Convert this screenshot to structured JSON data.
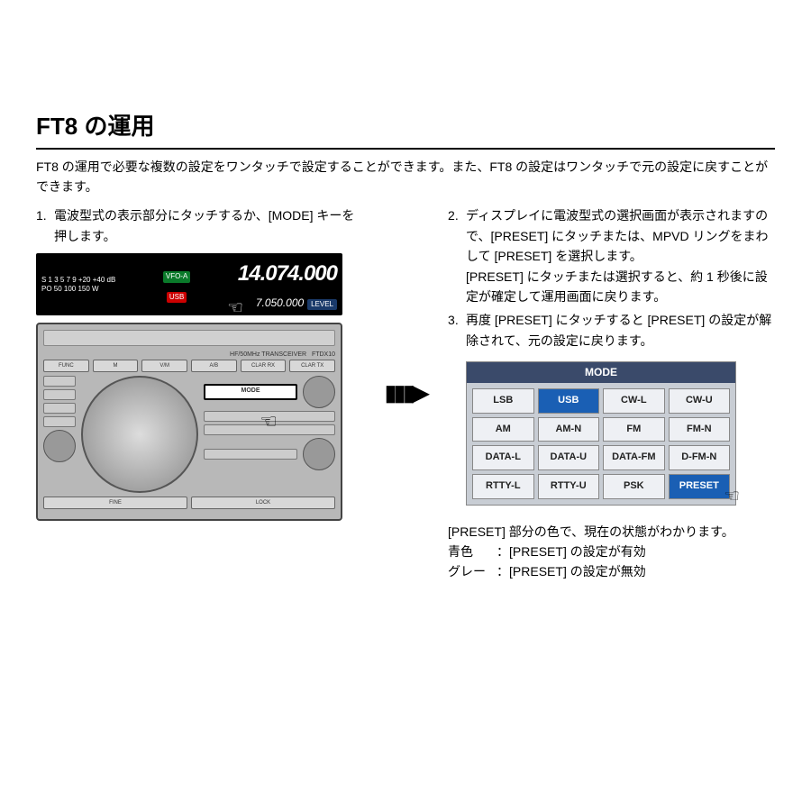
{
  "title": "FT8 の運用",
  "intro": "FT8 の運用で必要な複数の設定をワンタッチで設定することができます。また、FT8 の設定はワンタッチで元の設定に戻すことができます。",
  "left": {
    "step1_num": "1.",
    "step1_text": "電波型式の表示部分にタッチするか、[MODE] キーを押します。",
    "display": {
      "s_meter": "S 1 3 5 7 9 +20 +40 dB",
      "po_meter": "PO 50 100 150 W",
      "vfo": "VFO-A",
      "mode_badge": "USB",
      "freq_main": "14.074.000",
      "freq_sub": "7.050.000",
      "level": "LEVEL"
    },
    "front": {
      "brand": "HF/50MHz TRANSCEIVER",
      "model": "FTDX10",
      "btns_row": [
        "M",
        "V/M",
        "A/B",
        "CLAR RX",
        "CLAR TX"
      ],
      "mode_label": "MODE"
    }
  },
  "right": {
    "step2_num": "2.",
    "step2_text": "ディスプレイに電波型式の選択画面が表示されますので、[PRESET] にタッチまたは、MPVD リングをまわして [PRESET] を選択します。\n[PRESET] にタッチまたは選択すると、約 1 秒後に設定が確定して運用画面に戻ります。",
    "step3_num": "3.",
    "step3_text": "再度 [PRESET] にタッチすると [PRESET] の設定が解除されて、元の設定に戻ります。",
    "mode_panel": {
      "header": "MODE",
      "cells": [
        {
          "label": "LSB",
          "sel": false
        },
        {
          "label": "USB",
          "sel": true
        },
        {
          "label": "CW-L",
          "sel": false
        },
        {
          "label": "CW-U",
          "sel": false
        },
        {
          "label": "AM",
          "sel": false
        },
        {
          "label": "AM-N",
          "sel": false
        },
        {
          "label": "FM",
          "sel": false
        },
        {
          "label": "FM-N",
          "sel": false
        },
        {
          "label": "DATA-L",
          "sel": false
        },
        {
          "label": "DATA-U",
          "sel": false
        },
        {
          "label": "DATA-FM",
          "sel": false
        },
        {
          "label": "D-FM-N",
          "sel": false
        },
        {
          "label": "RTTY-L",
          "sel": false
        },
        {
          "label": "RTTY-U",
          "sel": false
        },
        {
          "label": "PSK",
          "sel": false
        },
        {
          "label": "PRESET",
          "sel": true
        }
      ]
    },
    "note_line": "[PRESET] 部分の色で、現在の状態がわかります。",
    "blue_label": "青色",
    "blue_text": "：[PRESET] の設定が有効",
    "gray_label": "グレー",
    "gray_text": "：[PRESET] の設定が無効"
  },
  "arrow": "▮▮▮▶"
}
